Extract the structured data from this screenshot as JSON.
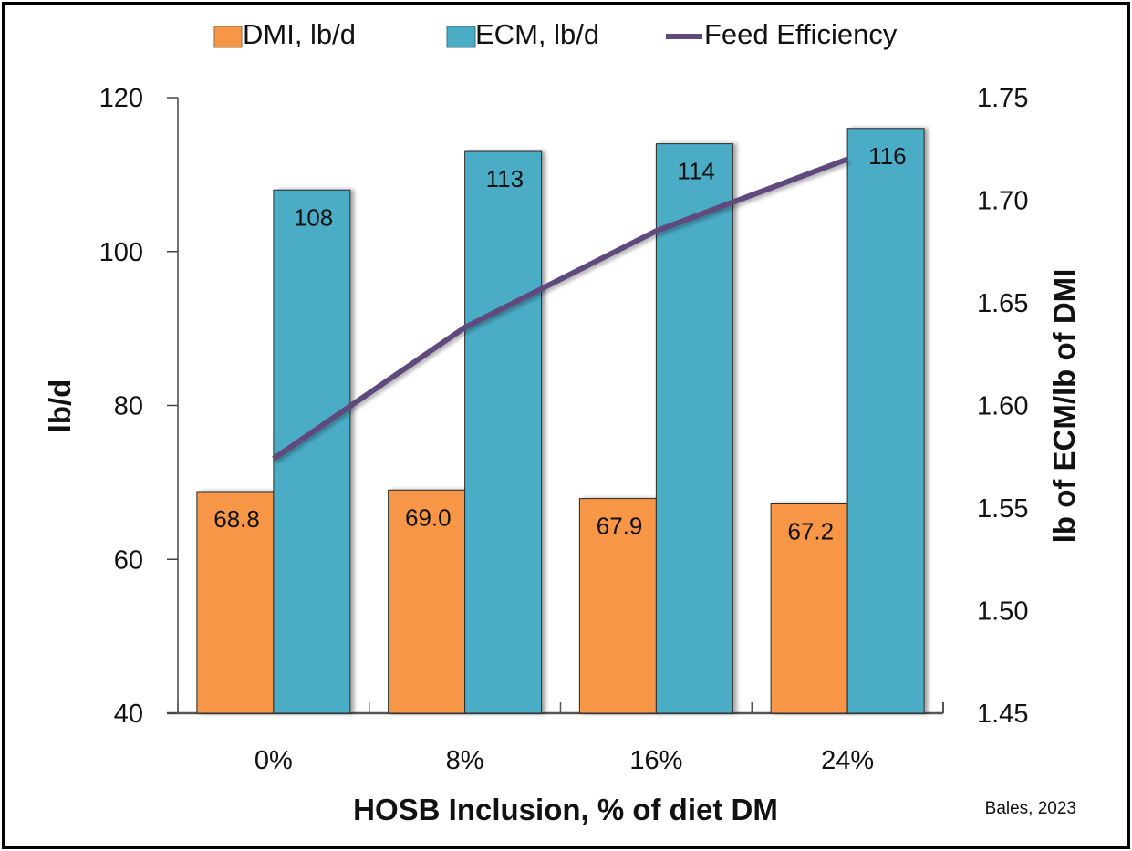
{
  "chart_data": {
    "type": "bar",
    "title": "",
    "categories": [
      "0%",
      "8%",
      "16%",
      "24%"
    ],
    "xlabel": "HOSB Inclusion, % of diet DM",
    "ylabel": "lb/d",
    "y2label": "lb of ECM/lb of DMI",
    "ylim": [
      40,
      120
    ],
    "y_ticks": [
      "40",
      "60",
      "80",
      "100",
      "120"
    ],
    "y2lim": [
      1.45,
      1.75
    ],
    "y2_ticks": [
      "1.45",
      "1.50",
      "1.55",
      "1.60",
      "1.65",
      "1.70",
      "1.75"
    ],
    "grid": false,
    "legend_position": "top",
    "series": [
      {
        "name": "DMI, lb/d",
        "type": "bar",
        "axis": "left",
        "color": "#F79646",
        "values": [
          68.8,
          69.0,
          67.9,
          67.2
        ],
        "labels": [
          "68.8",
          "69.0",
          "67.9",
          "67.2"
        ]
      },
      {
        "name": "ECM, lb/d",
        "type": "bar",
        "axis": "left",
        "color": "#4BACC6",
        "values": [
          108,
          113,
          114,
          116
        ],
        "labels": [
          "108",
          "113",
          "114",
          "116"
        ]
      },
      {
        "name": "Feed Efficiency",
        "type": "line",
        "axis": "right",
        "color": "#604A7B",
        "values": [
          1.574,
          1.638,
          1.685,
          1.72
        ]
      }
    ],
    "annotation": "Bales, 2023"
  }
}
